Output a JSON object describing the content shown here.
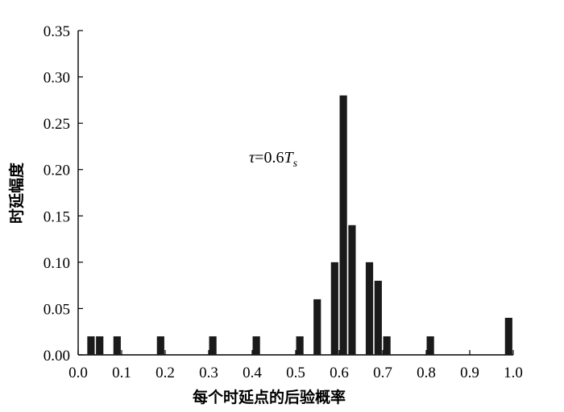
{
  "chart_data": {
    "type": "bar",
    "xlabel": "每个时延点的后验概率",
    "ylabel": "时延幅度",
    "xlim": [
      0.0,
      1.0
    ],
    "ylim": [
      0.0,
      0.35
    ],
    "xticks": [
      "0.0",
      "0.1",
      "0.2",
      "0.3",
      "0.4",
      "0.5",
      "0.6",
      "0.7",
      "0.8",
      "0.9",
      "1.0"
    ],
    "yticks": [
      "0.00",
      "0.05",
      "0.10",
      "0.15",
      "0.20",
      "0.25",
      "0.30",
      "0.35"
    ],
    "grid": false,
    "bar_color": "#1a1a1a",
    "annotation": {
      "symbol": "τ",
      "text": "=0.6",
      "var": "T",
      "sub": "s"
    },
    "bars": [
      {
        "x": 0.04,
        "y": 0.02
      },
      {
        "x": 0.06,
        "y": 0.02
      },
      {
        "x": 0.1,
        "y": 0.02
      },
      {
        "x": 0.2,
        "y": 0.02
      },
      {
        "x": 0.32,
        "y": 0.02
      },
      {
        "x": 0.42,
        "y": 0.02
      },
      {
        "x": 0.52,
        "y": 0.02
      },
      {
        "x": 0.56,
        "y": 0.06
      },
      {
        "x": 0.6,
        "y": 0.1
      },
      {
        "x": 0.62,
        "y": 0.28
      },
      {
        "x": 0.64,
        "y": 0.14
      },
      {
        "x": 0.68,
        "y": 0.1
      },
      {
        "x": 0.7,
        "y": 0.08
      },
      {
        "x": 0.72,
        "y": 0.02
      },
      {
        "x": 0.82,
        "y": 0.02
      },
      {
        "x": 1.0,
        "y": 0.04
      }
    ]
  }
}
